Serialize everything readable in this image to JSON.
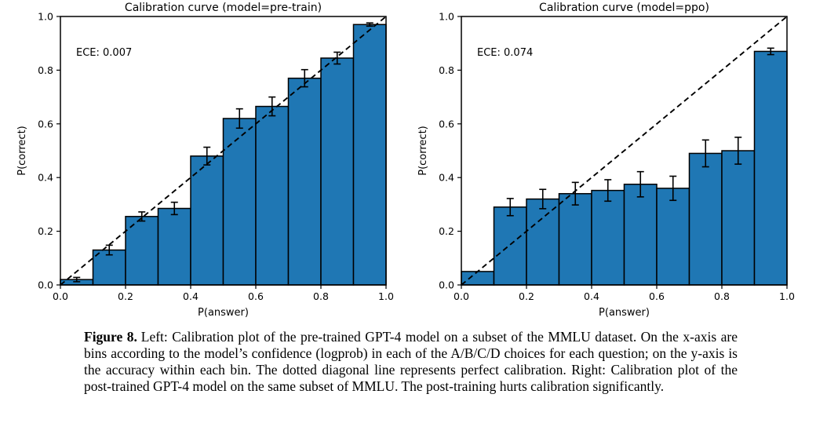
{
  "figure": {
    "caption": {
      "label": "Figure 8.",
      "text": "Left: Calibration plot of the pre-trained GPT-4 model on a subset of the MMLU dataset. On the x-axis are bins according to the model’s confidence (logprob) in each of the A/B/C/D choices for each question; on the y-axis is the accuracy within each bin. The dotted diagonal line represents perfect calibration. Right: Calibration plot of the post-trained GPT-4 model on the same subset of MMLU. The post-training hurts calibration significantly."
    }
  },
  "chart_data": [
    {
      "type": "bar",
      "title": "Calibration curve (model=pre-train)",
      "annotation": "ECE: 0.007",
      "xlabel": "P(answer)",
      "ylabel": "P(correct)",
      "xlim": [
        0.0,
        1.0
      ],
      "ylim": [
        0.0,
        1.0
      ],
      "xticks": [
        0.0,
        0.2,
        0.4,
        0.6,
        0.8,
        1.0
      ],
      "yticks": [
        0.0,
        0.2,
        0.4,
        0.6,
        0.8,
        1.0
      ],
      "grid": false,
      "legend": null,
      "bin_width": 0.1,
      "bin_left_edges": [
        0.0,
        0.1,
        0.2,
        0.3,
        0.4,
        0.5,
        0.6,
        0.7,
        0.8,
        0.9
      ],
      "values": [
        0.02,
        0.13,
        0.255,
        0.285,
        0.48,
        0.62,
        0.665,
        0.77,
        0.845,
        0.97
      ],
      "errors": [
        0.008,
        0.018,
        0.017,
        0.023,
        0.033,
        0.036,
        0.035,
        0.032,
        0.022,
        0.006
      ],
      "bar_color": "#1f77b4",
      "bar_edge_color": "#000000",
      "diagonal_line": "dashed y=x (perfect calibration)"
    },
    {
      "type": "bar",
      "title": "Calibration curve (model=ppo)",
      "annotation": "ECE: 0.074",
      "xlabel": "P(answer)",
      "ylabel": "P(correct)",
      "xlim": [
        0.0,
        1.0
      ],
      "ylim": [
        0.0,
        1.0
      ],
      "xticks": [
        0.0,
        0.2,
        0.4,
        0.6,
        0.8,
        1.0
      ],
      "yticks": [
        0.0,
        0.2,
        0.4,
        0.6,
        0.8,
        1.0
      ],
      "grid": false,
      "legend": null,
      "bin_width": 0.1,
      "bin_left_edges": [
        0.0,
        0.1,
        0.2,
        0.3,
        0.4,
        0.5,
        0.6,
        0.7,
        0.8,
        0.9
      ],
      "values": [
        0.05,
        0.29,
        0.32,
        0.34,
        0.352,
        0.375,
        0.36,
        0.49,
        0.5,
        0.87
      ],
      "errors": [
        0,
        0.032,
        0.036,
        0.042,
        0.04,
        0.047,
        0.045,
        0.05,
        0.05,
        0.012
      ],
      "bar_color": "#1f77b4",
      "bar_edge_color": "#000000",
      "diagonal_line": "dashed y=x (perfect calibration)"
    }
  ]
}
